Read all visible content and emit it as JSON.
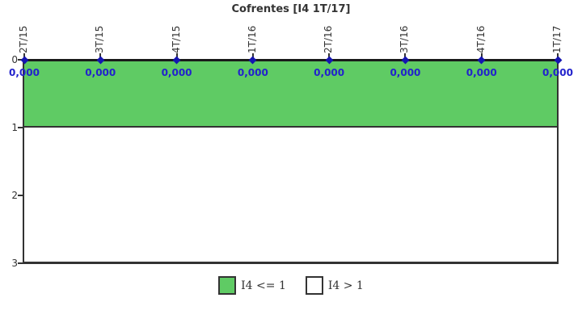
{
  "title": "Cofrentes [I4 1T/17]",
  "colors": {
    "band_green": "#5FCB64",
    "band_white": "#FFFFFF",
    "axis": "#1a1a1a",
    "border": "#333333",
    "tick_label": "#333333",
    "marker_blue": "#1515B0",
    "value_blue": "#2222CC",
    "title_text": "#333333"
  },
  "chart_data": {
    "type": "line",
    "title": "Cofrentes [I4 1T/17]",
    "categories": [
      "2T/15",
      "3T/15",
      "4T/15",
      "1T/16",
      "2T/16",
      "3T/16",
      "4T/16",
      "1T/17"
    ],
    "values": [
      0,
      0,
      0,
      0,
      0,
      0,
      0,
      0
    ],
    "value_labels": [
      "0,000",
      "0,000",
      "0,000",
      "0,000",
      "0,000",
      "0,000",
      "0,000",
      "0,000"
    ],
    "y_ticks": [
      "0",
      "1",
      "2",
      "3"
    ],
    "ylim": [
      0,
      3
    ],
    "y_axis_inverted": true,
    "x_axis_position": "top",
    "grid": false,
    "legend_position": "bottom",
    "bands": [
      {
        "label": "I4 <= 1",
        "from": 0,
        "to": 1,
        "color": "#5FCB64"
      },
      {
        "label": "I4 > 1",
        "from": 1,
        "to": 3,
        "color": "#FFFFFF"
      }
    ],
    "legend": [
      {
        "label": "I4 <= 1",
        "color": "#5FCB64"
      },
      {
        "label": "I4 > 1",
        "color": "#FFFFFF"
      }
    ]
  }
}
